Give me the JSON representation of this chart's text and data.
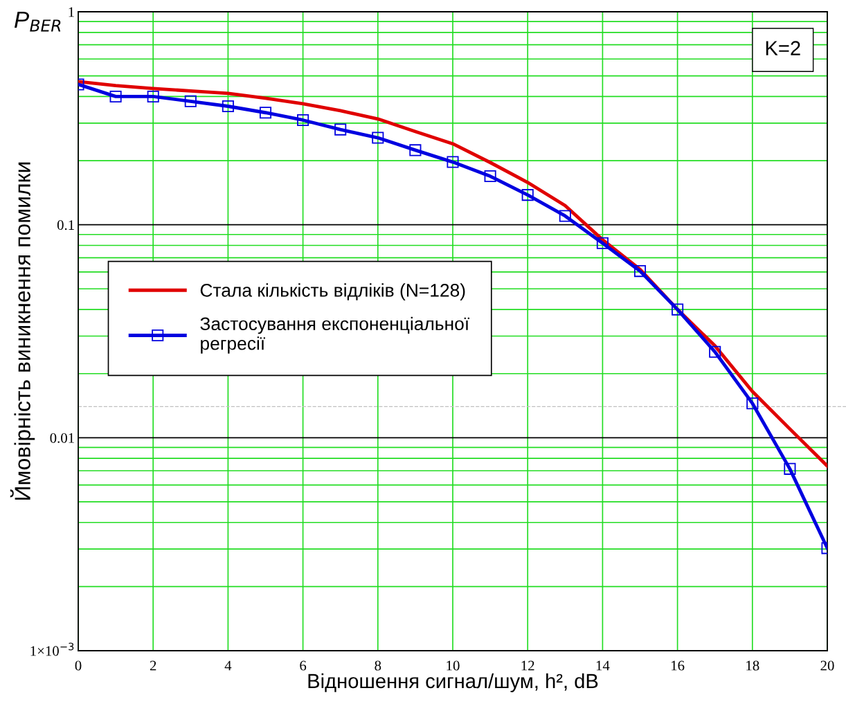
{
  "chart_data": {
    "type": "line",
    "xlabel": "Відношення сигнал/шум, h², dB",
    "ylabel": "Ймовірність виникнення помилки",
    "annotations": [
      "P$_{BER}$",
      "K=2"
    ],
    "x": [
      0,
      1,
      2,
      3,
      4,
      5,
      6,
      7,
      8,
      9,
      10,
      11,
      12,
      13,
      14,
      15,
      16,
      17,
      18,
      19,
      20
    ],
    "series": [
      {
        "name": "Стала кількість відліків (N=128)",
        "color": "#e00000",
        "marker": "none",
        "values": [
          0.47,
          0.45,
          0.436,
          0.425,
          0.414,
          0.393,
          0.37,
          0.343,
          0.314,
          0.274,
          0.24,
          0.196,
          0.158,
          0.123,
          0.085,
          0.0617,
          0.04,
          0.027,
          0.0165,
          0.011,
          0.00736
        ]
      },
      {
        "name": "Застосування експоненціальної\nрегресії",
        "color": "#0000e0",
        "marker": "square",
        "values": [
          0.456,
          0.4,
          0.4,
          0.38,
          0.36,
          0.336,
          0.31,
          0.28,
          0.256,
          0.224,
          0.197,
          0.169,
          0.138,
          0.11,
          0.082,
          0.0606,
          0.04,
          0.0253,
          0.0145,
          0.00714,
          0.00303
        ]
      }
    ],
    "log": "y",
    "xlim": [
      0,
      20
    ],
    "xticks": [
      0,
      2,
      4,
      6,
      8,
      10,
      12,
      14,
      16,
      18,
      20
    ],
    "ylim": [
      0.001,
      1
    ],
    "yticks": [
      {
        "value": 0.001,
        "label": "1×10$^{−3}$"
      },
      {
        "value": 0.002,
        "label": null
      },
      {
        "value": 0.003,
        "label": null
      },
      {
        "value": 0.004,
        "label": null
      },
      {
        "value": 0.005,
        "label": null
      },
      {
        "value": 0.006,
        "label": null
      },
      {
        "value": 0.007,
        "label": null
      },
      {
        "value": 0.008,
        "label": null
      },
      {
        "value": 0.009,
        "label": null
      },
      {
        "value": 0.01,
        "label": "0.01"
      },
      {
        "value": 0.02,
        "label": null
      },
      {
        "value": 0.03,
        "label": null
      },
      {
        "value": 0.04,
        "label": null
      },
      {
        "value": 0.05,
        "label": null
      },
      {
        "value": 0.06,
        "label": null
      },
      {
        "value": 0.07,
        "label": null
      },
      {
        "value": 0.08,
        "label": null
      },
      {
        "value": 0.09,
        "label": null
      },
      {
        "value": 0.1,
        "label": "0.1"
      },
      {
        "value": 0.2,
        "label": null
      },
      {
        "value": 0.3,
        "label": null
      },
      {
        "value": 0.4,
        "label": null
      },
      {
        "value": 0.5,
        "label": null
      },
      {
        "value": 0.6,
        "label": null
      },
      {
        "value": 0.7,
        "label": null
      },
      {
        "value": 0.8,
        "label": null
      },
      {
        "value": 0.9,
        "label": null
      },
      {
        "value": 1,
        "label": "1"
      }
    ],
    "ref_lines": [
      {
        "axis": "y",
        "value": 0.014,
        "color": "#c0c0c0",
        "line_style": "dashed"
      }
    ],
    "grid": true,
    "legend": "center left"
  }
}
